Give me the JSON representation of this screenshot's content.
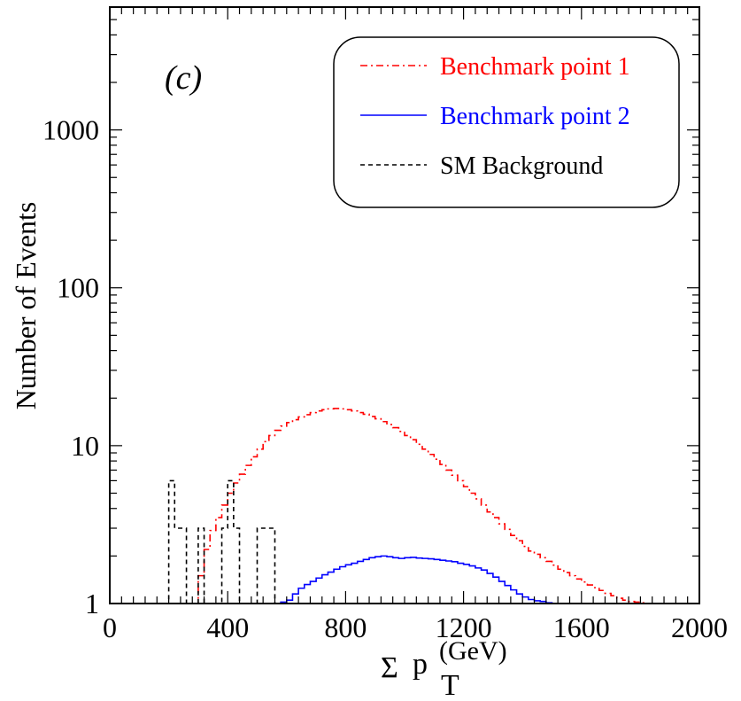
{
  "chart_data": {
    "type": "line",
    "step": true,
    "annotation": "(c)",
    "xlabel": {
      "sigma": "Σ",
      "main": "p",
      "sub": "T",
      "unit": "(GeV)"
    },
    "ylabel": "Number of Events",
    "xlim": [
      0,
      2000
    ],
    "ylim": [
      1,
      6000
    ],
    "yscale": "log",
    "xticks": [
      {
        "value": 0,
        "label": "0"
      },
      {
        "value": 400,
        "label": "400"
      },
      {
        "value": 800,
        "label": "800"
      },
      {
        "value": 1200,
        "label": "1200"
      },
      {
        "value": 1600,
        "label": "1600"
      },
      {
        "value": 2000,
        "label": "2000"
      }
    ],
    "yticks": [
      {
        "value": 1,
        "label": "1"
      },
      {
        "value": 10,
        "label": "10"
      },
      {
        "value": 100,
        "label": "100"
      },
      {
        "value": 1000,
        "label": "1000"
      }
    ],
    "legend": {
      "position": "top-right",
      "entries": [
        {
          "label": "Benchmark point 1",
          "color": "#ff0000",
          "style": "dashdot"
        },
        {
          "label": "Benchmark point 2",
          "color": "#0000ff",
          "style": "solid"
        },
        {
          "label": "SM Background",
          "color": "#000000",
          "style": "dashed"
        }
      ]
    },
    "series": [
      {
        "name": "Benchmark point 1",
        "color": "#ff0000",
        "style": "dashdot",
        "x": [
          280,
          300,
          320,
          340,
          360,
          380,
          400,
          420,
          440,
          460,
          480,
          500,
          520,
          540,
          560,
          580,
          600,
          620,
          640,
          660,
          680,
          700,
          720,
          740,
          760,
          780,
          800,
          820,
          840,
          860,
          880,
          900,
          920,
          940,
          960,
          980,
          1000,
          1020,
          1040,
          1060,
          1080,
          1100,
          1120,
          1140,
          1160,
          1180,
          1200,
          1220,
          1240,
          1260,
          1280,
          1300,
          1320,
          1340,
          1360,
          1380,
          1400,
          1420,
          1440,
          1460,
          1480,
          1500,
          1520,
          1540,
          1560,
          1580,
          1600,
          1620,
          1640,
          1660,
          1680,
          1700,
          1720,
          1740,
          1760,
          1780,
          1800,
          1820,
          1840,
          1860,
          1880,
          1900,
          1920,
          1940,
          1960,
          1980
        ],
        "y": [
          1,
          1.5,
          2.2,
          2.9,
          3.5,
          4.2,
          5,
          5.8,
          6.6,
          7.5,
          8.5,
          9.5,
          10.6,
          11.6,
          12.5,
          13.3,
          14,
          14.6,
          15.2,
          15.7,
          16.2,
          16.6,
          16.9,
          17.1,
          17.2,
          17.1,
          16.9,
          16.6,
          16.2,
          15.8,
          15.3,
          14.8,
          14.2,
          13.6,
          13,
          12.3,
          11.6,
          10.9,
          10.2,
          9.5,
          8.8,
          8.2,
          7.6,
          7,
          6.5,
          6,
          5.5,
          5,
          4.6,
          4.2,
          3.8,
          3.5,
          3.2,
          2.95,
          2.7,
          2.5,
          2.3,
          2.15,
          2.05,
          1.95,
          1.85,
          1.75,
          1.65,
          1.57,
          1.5,
          1.43,
          1.37,
          1.31,
          1.26,
          1.21,
          1.16,
          1.12,
          1.08,
          1.05,
          1.03,
          1.02,
          1.01,
          1,
          1,
          1,
          1,
          1,
          1,
          1,
          1,
          1
        ]
      },
      {
        "name": "Benchmark point 2",
        "color": "#0000ff",
        "style": "solid",
        "x": [
          560,
          580,
          600,
          620,
          640,
          660,
          680,
          700,
          720,
          740,
          760,
          780,
          800,
          820,
          840,
          860,
          880,
          900,
          920,
          940,
          960,
          980,
          1000,
          1020,
          1040,
          1060,
          1080,
          1100,
          1120,
          1140,
          1160,
          1180,
          1200,
          1220,
          1240,
          1260,
          1280,
          1300,
          1320,
          1340,
          1360,
          1380,
          1400,
          1420,
          1440,
          1460,
          1480,
          1500
        ],
        "y": [
          1,
          1.02,
          1.05,
          1.15,
          1.25,
          1.32,
          1.38,
          1.45,
          1.52,
          1.58,
          1.65,
          1.71,
          1.76,
          1.8,
          1.85,
          1.9,
          1.95,
          1.98,
          2,
          1.98,
          1.95,
          1.93,
          1.95,
          1.96,
          1.94,
          1.93,
          1.92,
          1.9,
          1.88,
          1.86,
          1.84,
          1.8,
          1.77,
          1.73,
          1.68,
          1.63,
          1.55,
          1.47,
          1.38,
          1.3,
          1.22,
          1.15,
          1.1,
          1.06,
          1.04,
          1.03,
          1.01,
          1
        ]
      },
      {
        "name": "SM Background",
        "color": "#000000",
        "style": "dashed",
        "x": [
          160,
          180,
          200,
          220,
          240,
          260,
          280,
          300,
          320,
          340,
          360,
          380,
          400,
          420,
          440,
          460,
          480,
          500,
          520,
          540,
          560,
          580
        ],
        "y": [
          1,
          1,
          6,
          3,
          3,
          1,
          1,
          3,
          1,
          1,
          1,
          3,
          6,
          3,
          1,
          1,
          1,
          3,
          3,
          3,
          1,
          1
        ]
      }
    ]
  }
}
